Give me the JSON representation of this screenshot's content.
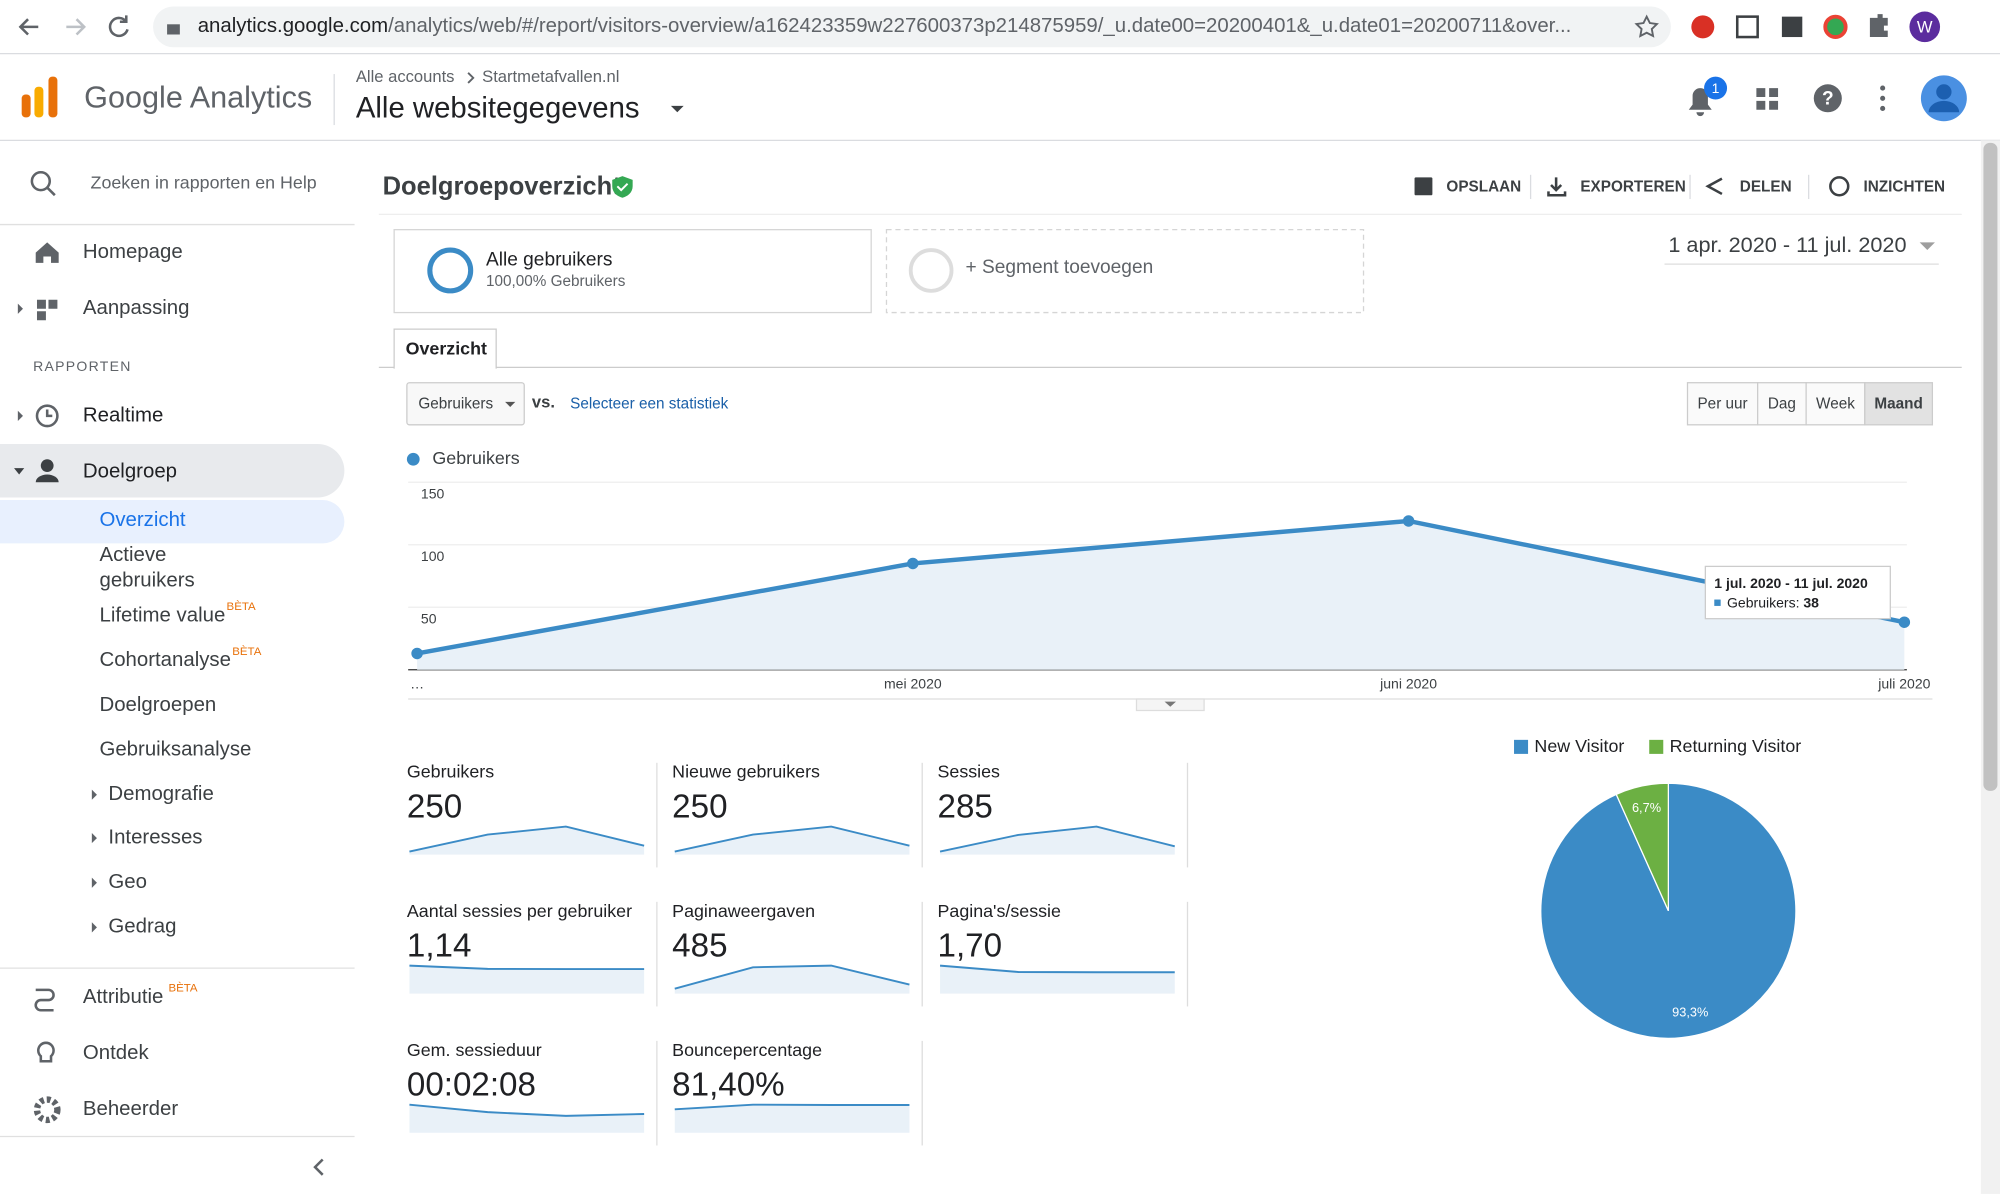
{
  "browser": {
    "url_host": "analytics.google.com",
    "url_path": "/analytics/web/#/report/visitors-overview/a162423359w227600373p214875959/_u.date00=20200401&_u.date01=20200711&over...",
    "profile_initial": "W"
  },
  "header": {
    "product": "Google Analytics",
    "breadcrumb": [
      "Alle accounts",
      "Startmetafvallen.nl"
    ],
    "property": "Alle websitegegevens",
    "notification_count": 1
  },
  "sidebar": {
    "search": "Zoeken in rapporten en Help",
    "top_items": [
      "Homepage",
      "Aanpassing"
    ],
    "section": "RAPPORTEN",
    "items": [
      "Realtime",
      "Doelgroep"
    ],
    "sub_items": [
      {
        "label": "Overzicht"
      },
      {
        "label": "Actieve gebruikers"
      },
      {
        "label": "Lifetime value",
        "badge": "BÈTA"
      },
      {
        "label": "Cohortanalyse",
        "badge": "BÈTA"
      },
      {
        "label": "Doelgroepen"
      },
      {
        "label": "Gebruiksanalyse"
      },
      {
        "label": "Demografie"
      },
      {
        "label": "Interesses"
      },
      {
        "label": "Geo"
      },
      {
        "label": "Gedrag"
      }
    ],
    "bottom_items": [
      {
        "label": "Attributie",
        "badge": "BÈTA"
      },
      {
        "label": "Ontdek"
      },
      {
        "label": "Beheerder"
      }
    ]
  },
  "report": {
    "title": "Doelgroepoverzicht",
    "actions": [
      "OPSLAAN",
      "EXPORTEREN",
      "DELEN",
      "INZICHTEN"
    ],
    "segment": {
      "name": "Alle gebruikers",
      "detail": "100,00% Gebruikers"
    },
    "add_segment": "+ Segment toevoegen",
    "date_range": "1 apr. 2020 - 11 jul. 2020",
    "tab": "Overzicht",
    "metric_select": "Gebruikers",
    "vs": "vs.",
    "select_metric": "Selecteer een statistiek",
    "granularity": [
      "Per uur",
      "Dag",
      "Week",
      "Maand"
    ],
    "active_granularity": "Maand"
  },
  "metrics": [
    {
      "label": "Gebruikers",
      "value": "250",
      "trend": [
        13,
        85,
        119,
        38
      ]
    },
    {
      "label": "Nieuwe gebruikers",
      "value": "250",
      "trend": [
        13,
        85,
        119,
        38
      ]
    },
    {
      "label": "Sessies",
      "value": "285",
      "trend": [
        15,
        95,
        135,
        40
      ]
    },
    {
      "label": "Aantal sessies per gebruiker",
      "value": "1,14",
      "trend": [
        1.3,
        1.15,
        1.14,
        1.14
      ]
    },
    {
      "label": "Paginaweergaven",
      "value": "485",
      "trend": [
        30,
        160,
        170,
        55
      ]
    },
    {
      "label": "Pagina's/sessie",
      "value": "1,70",
      "trend": [
        2.2,
        1.7,
        1.68,
        1.68
      ]
    },
    {
      "label": "Gem. sessieduur",
      "value": "00:02:08",
      "trend": [
        150,
        110,
        90,
        100
      ]
    },
    {
      "label": "Bouncepercentage",
      "value": "81,40%",
      "trend": [
        70,
        84,
        83,
        83
      ]
    }
  ],
  "chart_data": [
    {
      "type": "line",
      "categories": [
        "…",
        "mei 2020",
        "juni 2020",
        "juli 2020"
      ],
      "series": [
        {
          "name": "Gebruikers",
          "color": "#3b8bc6",
          "values": [
            13,
            85,
            119,
            38
          ]
        }
      ],
      "ylim": [
        0,
        150
      ],
      "yticks": [
        50,
        100,
        150
      ],
      "grid": true,
      "tooltip": {
        "title": "1 jul. 2020 - 11 jul. 2020",
        "label": "Gebruikers:"
      }
    },
    {
      "type": "pie",
      "categories": [
        "New Visitor",
        "Returning Visitor"
      ],
      "values": [
        93.3,
        6.7
      ],
      "value_labels": [
        "93,3%",
        "6,7%"
      ],
      "colors": [
        "#3b8bc6",
        "#6cb043"
      ]
    }
  ]
}
